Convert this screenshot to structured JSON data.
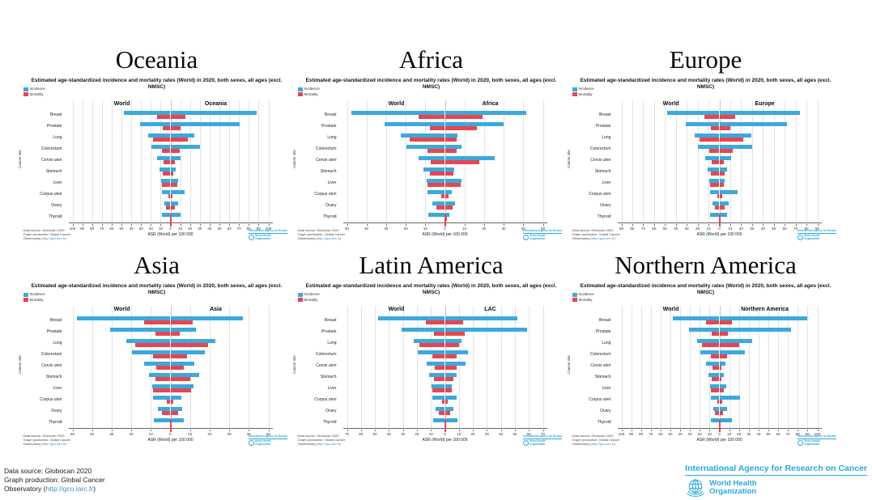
{
  "page_footer": {
    "line1": "Data source: Globocan 2020",
    "line2": "Graph production: Global Cancer",
    "line3_prefix": "Observatory (",
    "link": "http://gco.iarc.fr",
    "line3_suffix": ")"
  },
  "logos": {
    "iarc": "International Agency for Research on Cancer",
    "who_line1": "World Health",
    "who_line2": "Organization"
  },
  "colors": {
    "incidence": "#3BA9DC",
    "mortality": "#E8454E",
    "link": "#3E8ECC",
    "logo_blue": "#29A9E0"
  },
  "chart_footnote": {
    "line1": "Data source: Globocan 2020",
    "line2": "Graph production: Global Cancer",
    "line3_prefix": "Observatory (",
    "link": "http://gco.iarc.fr",
    "line3_suffix": ")"
  },
  "chart_mini_logo": {
    "iarc": "International Agency for Research on Cancer",
    "who_line1": "World Health",
    "who_line2": "Organization"
  },
  "chart_data": [
    {
      "type": "bar",
      "title": "Oceania",
      "subtitle": "Estimated age-standardized incidence and mortality rates (World) in 2020, both sexes, all ages (excl. NMSC)",
      "legend": [
        "Incidence",
        "Mortality"
      ],
      "left_header": "World",
      "right_header": "Oceania",
      "xlabel": "ASR (World) per 100 000",
      "ylabel": "Cancer site",
      "axis_max": 100,
      "tick_step": 10,
      "categories": [
        "Breast",
        "Prostate",
        "Lung",
        "Colorectum",
        "Cervix uteri",
        "Stomach",
        "Liver",
        "Corpus uteri",
        "Ovary",
        "Thyroid"
      ],
      "series": [
        {
          "name": "World Incidence",
          "side": "left",
          "measure": "incidence",
          "values": [
            47.8,
            30.7,
            22.4,
            19.5,
            13.3,
            11.1,
            9.5,
            8.7,
            6.6,
            8.6
          ]
        },
        {
          "name": "World Mortality",
          "side": "left",
          "measure": "mortality",
          "values": [
            13.6,
            7.7,
            18.0,
            9.0,
            7.3,
            7.7,
            8.7,
            1.8,
            4.2,
            0.4
          ]
        },
        {
          "name": "Oceania Incidence",
          "side": "right",
          "measure": "incidence",
          "values": [
            88.0,
            70.8,
            24.4,
            29.8,
            10.7,
            5.6,
            8.1,
            14.4,
            7.6,
            10.4
          ]
        },
        {
          "name": "Oceania Mortality",
          "side": "right",
          "measure": "mortality",
          "values": [
            14.9,
            10.6,
            17.5,
            9.6,
            4.5,
            3.1,
            7.2,
            2.4,
            4.6,
            0.5
          ]
        }
      ]
    },
    {
      "type": "bar",
      "title": "Africa",
      "subtitle": "Estimated age-standardized incidence and mortality rates (World) in 2020, both sexes, all ages (excl. NMSC)",
      "legend": [
        "Incidence",
        "Mortality"
      ],
      "left_header": "World",
      "right_header": "Africa",
      "xlabel": "ASR (World) per 100 000",
      "ylabel": "Cancer site",
      "axis_max": 50,
      "tick_step": 10,
      "categories": [
        "Breast",
        "Prostate",
        "Lung",
        "Colorectum",
        "Cervix uteri",
        "Stomach",
        "Liver",
        "Corpus uteri",
        "Ovary",
        "Thyroid"
      ],
      "series": [
        {
          "name": "World Incidence",
          "side": "left",
          "measure": "incidence",
          "values": [
            47.8,
            30.7,
            22.4,
            19.5,
            13.3,
            11.1,
            9.5,
            8.7,
            6.6,
            8.6
          ]
        },
        {
          "name": "World Mortality",
          "side": "left",
          "measure": "mortality",
          "values": [
            13.6,
            7.7,
            18.0,
            9.0,
            7.3,
            7.7,
            8.7,
            1.8,
            4.2,
            0.4
          ]
        },
        {
          "name": "Africa Incidence",
          "side": "right",
          "measure": "incidence",
          "values": [
            41.4,
            29.9,
            6.4,
            8.6,
            25.6,
            4.7,
            8.4,
            3.7,
            5.2,
            2.3
          ]
        },
        {
          "name": "Africa Mortality",
          "side": "right",
          "measure": "mortality",
          "values": [
            19.4,
            16.3,
            5.8,
            5.8,
            17.7,
            4.2,
            8.1,
            1.7,
            3.9,
            0.9
          ]
        }
      ]
    },
    {
      "type": "bar",
      "title": "Europe",
      "subtitle": "Estimated age-standardized incidence and mortality rates (World) in 2020, both sexes, all ages (excl. NMSC)",
      "legend": [
        "Incidence",
        "Mortality"
      ],
      "left_header": "World",
      "right_header": "Europe",
      "xlabel": "ASR (World) per 100 000",
      "ylabel": "Cancer site",
      "axis_max": 90,
      "tick_step": 10,
      "categories": [
        "Breast",
        "Prostate",
        "Lung",
        "Colorectum",
        "Cervix uteri",
        "Stomach",
        "Liver",
        "Corpus uteri",
        "Ovary",
        "Thyroid"
      ],
      "series": [
        {
          "name": "World Incidence",
          "side": "left",
          "measure": "incidence",
          "values": [
            47.8,
            30.7,
            22.4,
            19.5,
            13.3,
            11.1,
            9.5,
            8.7,
            6.6,
            8.6
          ]
        },
        {
          "name": "World Mortality",
          "side": "left",
          "measure": "mortality",
          "values": [
            13.6,
            7.7,
            18.0,
            9.0,
            7.3,
            7.7,
            8.7,
            1.8,
            4.2,
            0.4
          ]
        },
        {
          "name": "Europe Incidence",
          "side": "right",
          "measure": "incidence",
          "values": [
            74.3,
            62.1,
            29.2,
            30.4,
            10.7,
            7.4,
            4.9,
            16.6,
            8.4,
            7.3
          ]
        },
        {
          "name": "Europe Mortality",
          "side": "right",
          "measure": "mortality",
          "values": [
            14.8,
            10.2,
            21.6,
            12.3,
            3.9,
            5.0,
            4.0,
            2.5,
            5.0,
            0.4
          ]
        }
      ]
    },
    {
      "type": "bar",
      "title": "Asia",
      "subtitle": "Estimated age-standardized incidence and mortality rates (World) in 2020, both sexes, all ages (excl. NMSC)",
      "legend": [
        "Incidence",
        "Mortality"
      ],
      "left_header": "World",
      "right_header": "Asia",
      "xlabel": "ASR (World) per 100 000",
      "ylabel": "Cancer site",
      "axis_max": 50,
      "tick_step": 10,
      "categories": [
        "Breast",
        "Prostate",
        "Lung",
        "Colorectum",
        "Cervix uteri",
        "Stomach",
        "Liver",
        "Corpus uteri",
        "Ovary",
        "Thyroid"
      ],
      "series": [
        {
          "name": "World Incidence",
          "side": "left",
          "measure": "incidence",
          "values": [
            47.8,
            30.7,
            22.4,
            19.5,
            13.3,
            11.1,
            9.5,
            8.7,
            6.6,
            8.6
          ]
        },
        {
          "name": "World Mortality",
          "side": "left",
          "measure": "mortality",
          "values": [
            13.6,
            7.7,
            18.0,
            9.0,
            7.3,
            7.7,
            8.7,
            1.8,
            4.2,
            0.4
          ]
        },
        {
          "name": "Asia Incidence",
          "side": "right",
          "measure": "incidence",
          "values": [
            36.8,
            13.0,
            22.8,
            17.6,
            12.0,
            14.7,
            11.6,
            5.5,
            6.1,
            6.9
          ]
        },
        {
          "name": "Asia Mortality",
          "side": "right",
          "measure": "mortality",
          "values": [
            11.4,
            4.8,
            19.2,
            8.6,
            7.0,
            10.0,
            10.6,
            1.4,
            3.9,
            0.5
          ]
        }
      ]
    },
    {
      "type": "bar",
      "title": "Latin America",
      "subtitle": "Estimated age-standardized incidence and mortality rates (World) in 2020, both sexes, all ages (excl. NMSC)",
      "legend": [
        "Incidence",
        "Mortality"
      ],
      "left_header": "World",
      "right_header": "LAC",
      "xlabel": "ASR (World) per 100 000",
      "ylabel": "Cancer site",
      "axis_max": 70,
      "tick_step": 10,
      "categories": [
        "Breast",
        "Prostate",
        "Lung",
        "Colorectum",
        "Cervix uteri",
        "Stomach",
        "Liver",
        "Corpus uteri",
        "Ovary",
        "Thyroid"
      ],
      "series": [
        {
          "name": "World Incidence",
          "side": "left",
          "measure": "incidence",
          "values": [
            47.8,
            30.7,
            22.4,
            19.5,
            13.3,
            11.1,
            9.5,
            8.7,
            6.6,
            8.6
          ]
        },
        {
          "name": "World Mortality",
          "side": "left",
          "measure": "mortality",
          "values": [
            13.6,
            7.7,
            18.0,
            9.0,
            7.3,
            7.7,
            8.7,
            1.8,
            4.2,
            0.4
          ]
        },
        {
          "name": "LAC Incidence",
          "side": "right",
          "measure": "incidence",
          "values": [
            51.9,
            59.0,
            12.0,
            16.6,
            14.9,
            8.6,
            5.2,
            8.2,
            5.8,
            9.2
          ]
        },
        {
          "name": "LAC Mortality",
          "side": "right",
          "measure": "mortality",
          "values": [
            13.2,
            14.2,
            10.3,
            8.4,
            8.1,
            6.0,
            4.9,
            1.8,
            3.8,
            0.5
          ]
        }
      ]
    },
    {
      "type": "bar",
      "title": "Northern America",
      "subtitle": "Estimated age-standardized incidence and mortality rates (World) in 2020, both sexes, all ages (excl. NMSC)",
      "legend": [
        "Incidence",
        "Mortality"
      ],
      "left_header": "World",
      "right_header": "Northern America",
      "xlabel": "ASR (World) per 100 000",
      "ylabel": "Cancer site",
      "axis_max": 100,
      "tick_step": 10,
      "categories": [
        "Breast",
        "Prostate",
        "Lung",
        "Colorectum",
        "Cervix uteri",
        "Stomach",
        "Liver",
        "Corpus uteri",
        "Ovary",
        "Thyroid"
      ],
      "series": [
        {
          "name": "World Incidence",
          "side": "left",
          "measure": "incidence",
          "values": [
            47.8,
            30.7,
            22.4,
            19.5,
            13.3,
            11.1,
            9.5,
            8.7,
            6.6,
            8.6
          ]
        },
        {
          "name": "World Mortality",
          "side": "left",
          "measure": "mortality",
          "values": [
            13.6,
            7.7,
            18.0,
            9.0,
            7.3,
            7.7,
            8.7,
            1.8,
            4.2,
            0.4
          ]
        },
        {
          "name": "Northern America Incidence",
          "side": "right",
          "measure": "incidence",
          "values": [
            89.4,
            73.0,
            33.1,
            26.2,
            6.2,
            4.6,
            6.9,
            21.1,
            8.0,
            12.6
          ]
        },
        {
          "name": "Northern America Mortality",
          "side": "right",
          "measure": "mortality",
          "values": [
            12.5,
            8.3,
            19.9,
            8.2,
            1.9,
            1.9,
            4.8,
            2.7,
            3.9,
            0.3
          ]
        }
      ]
    }
  ]
}
